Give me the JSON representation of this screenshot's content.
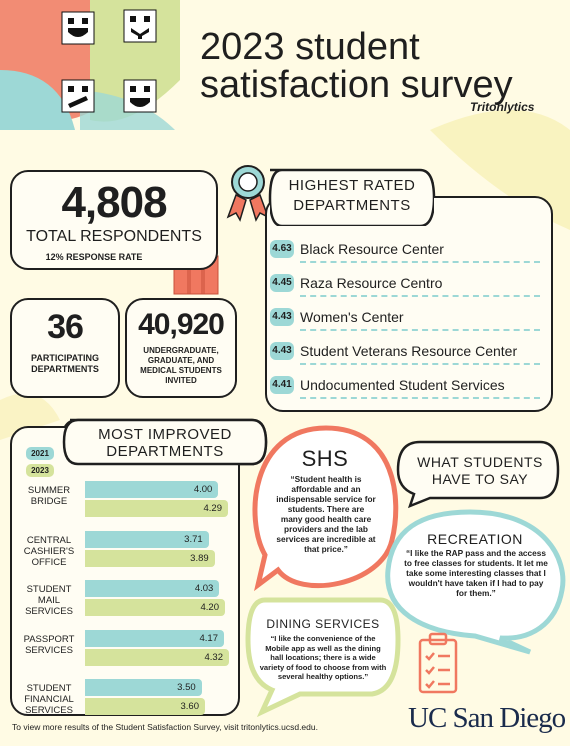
{
  "header": {
    "title": "2023 student satisfaction survey",
    "brand": "Tritonlytics"
  },
  "stats": {
    "total": {
      "value": "4,808",
      "label": "TOTAL RESPONDENTS",
      "note": "12% RESPONSE RATE"
    },
    "departments": {
      "value": "36",
      "label": "PARTICIPATING DEPARTMENTS"
    },
    "invited": {
      "value": "40,920",
      "label": "UNDERGRADUATE, GRADUATE, AND MEDICAL STUDENTS INVITED"
    }
  },
  "highest_rated": {
    "title": "HIGHEST RATED DEPARTMENTS",
    "items": [
      {
        "score": 4.63,
        "name": "Black Resource Center"
      },
      {
        "score": 4.45,
        "name": "Raza Resource Centro"
      },
      {
        "score": 4.43,
        "name": "Women's Center"
      },
      {
        "score": 4.43,
        "name": "Student Veterans Resource Center"
      },
      {
        "score": 4.41,
        "name": "Undocumented Student Services"
      }
    ]
  },
  "most_improved": {
    "type": "bar",
    "title": "MOST IMPROVED DEPARTMENTS",
    "categories": [
      "SUMMER BRIDGE",
      "CENTRAL CASHIER'S OFFICE",
      "STUDENT MAIL SERVICES",
      "PASSPORT SERVICES",
      "STUDENT FINANCIAL SERVICES"
    ],
    "xlim": [
      0,
      4.5
    ],
    "series": [
      {
        "name": "2021",
        "color": "#9dd8d6",
        "values": [
          4.0,
          3.71,
          4.03,
          4.17,
          3.5
        ],
        "value_labels": [
          "4.00",
          "3.71",
          "4.03",
          "4.17",
          "3.50"
        ]
      },
      {
        "name": "2023",
        "color": "#d5e39c",
        "values": [
          4.29,
          3.89,
          4.2,
          4.32,
          3.6
        ],
        "value_labels": [
          "4.29",
          "3.89",
          "4.20",
          "4.32",
          "3.60"
        ]
      }
    ]
  },
  "quotes": {
    "heading": "WHAT STUDENTS HAVE TO SAY",
    "shs": {
      "title": "SHS",
      "text": "“Student health is affordable and an indispensable service for students. There are many good health care providers and the lab services are incredible at that price.”"
    },
    "recreation": {
      "title": "RECREATION",
      "text": "“I like the RAP pass and the access to free classes for students. It let me take some interesting classes that I wouldn't have taken if I had to pay for them.”"
    },
    "dining": {
      "title": "DINING SERVICES",
      "text": "“I like the convenience of the Mobile app as well as the dining hall locations; there is a wide variety of food to choose from with several healthy options.”"
    }
  },
  "footer": {
    "note": "To view more results of the Student Satisfaction Survey, visit tritonlytics.ucsd.edu.",
    "logo": "UC San Diego"
  }
}
